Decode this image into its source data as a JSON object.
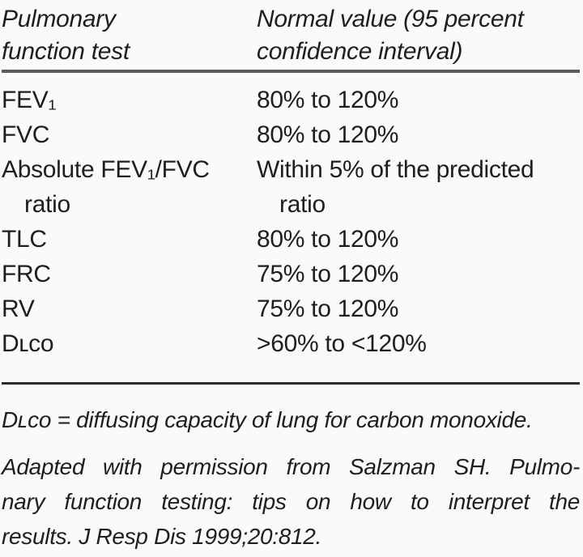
{
  "page": {
    "background": "#fafafa",
    "text_color": "#1e1e1e",
    "top_rule_color": "#5d5d5d",
    "bottom_rule_color": "#2e2e2e"
  },
  "table": {
    "header": {
      "col1_lines": [
        "Pulmonary",
        "function test"
      ],
      "col2_lines": [
        "Normal value (95 percent",
        "confidence interval)"
      ]
    },
    "rows": [
      {
        "test": [
          "FEV₁"
        ],
        "value": [
          "80% to 120%"
        ]
      },
      {
        "test": [
          "FVC"
        ],
        "value": [
          "80% to 120%"
        ]
      },
      {
        "test": [
          "Absolute FEV₁/FVC",
          "ratio"
        ],
        "value": [
          "Within 5% of the predicted",
          "ratio"
        ]
      },
      {
        "test": [
          "TLC"
        ],
        "value": [
          "80% to 120%"
        ]
      },
      {
        "test": [
          "FRC"
        ],
        "value": [
          "75% to 120%"
        ]
      },
      {
        "test": [
          "RV"
        ],
        "value": [
          "75% to 120%"
        ]
      },
      {
        "test": [
          "Dʟᴄᴏ"
        ],
        "value": [
          ">60% to <120%"
        ]
      }
    ]
  },
  "footnotes": {
    "definition": "Dʟᴄᴏ = diffusing capacity of lung for carbon monoxide.",
    "citation_lines": [
      "Adapted with permission from Salzman SH. Pulmo-",
      "nary function testing: tips on how to interpret the",
      "results. J Resp Dis 1999;20:812."
    ]
  },
  "chart_data": {
    "type": "table",
    "title": "",
    "columns": [
      "Pulmonary function test",
      "Normal value (95 percent confidence interval)"
    ],
    "rows": [
      [
        "FEV₁",
        "80% to 120%"
      ],
      [
        "FVC",
        "80% to 120%"
      ],
      [
        "Absolute FEV₁/FVC ratio",
        "Within 5% of the predicted ratio"
      ],
      [
        "TLC",
        "80% to 120%"
      ],
      [
        "FRC",
        "75% to 120%"
      ],
      [
        "RV",
        "75% to 120%"
      ],
      [
        "DLCO",
        ">60% to <120%"
      ]
    ]
  }
}
